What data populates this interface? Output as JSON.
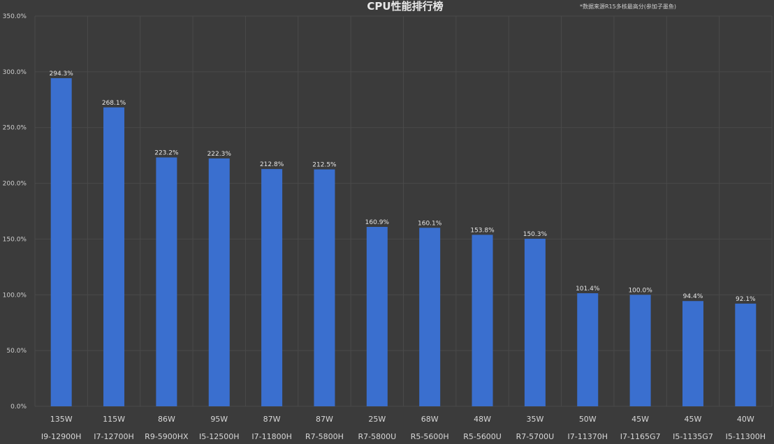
{
  "chart_data": {
    "type": "bar",
    "title": "CPU性能排行榜",
    "annotation": "*数据来源R15多核最高分(参加子墨鱼)",
    "categories": [
      "I9-12900H",
      "I7-12700H",
      "R9-5900HX",
      "I5-12500H",
      "I7-11800H",
      "R7-5800H",
      "R7-5800U",
      "R5-5600H",
      "R5-5600U",
      "R7-5700U",
      "I7-11370H",
      "I7-1165G7",
      "I5-1135G7",
      "I5-11300H"
    ],
    "power": [
      "135W",
      "115W",
      "86W",
      "95W",
      "87W",
      "87W",
      "25W",
      "68W",
      "48W",
      "35W",
      "50W",
      "45W",
      "45W",
      "40W"
    ],
    "values": [
      294.3,
      268.1,
      223.2,
      222.3,
      212.8,
      212.5,
      160.9,
      160.1,
      153.8,
      150.3,
      101.4,
      100.0,
      94.4,
      92.1
    ],
    "data_labels": [
      "294.3%",
      "268.1%",
      "223.2%",
      "222.3%",
      "212.8%",
      "212.5%",
      "160.9%",
      "160.1%",
      "153.8%",
      "150.3%",
      "101.4%",
      "100.0%",
      "94.4%",
      "92.1%"
    ],
    "ylim": [
      0,
      350
    ],
    "yticks": [
      0,
      50,
      100,
      150,
      200,
      250,
      300,
      350
    ],
    "ytick_labels": [
      "0.0%",
      "50.0%",
      "100.0%",
      "150.0%",
      "200.0%",
      "250.0%",
      "300.0%",
      "350.0%"
    ],
    "grid": true,
    "colors": {
      "bar": "#3a6fcf",
      "background": "#3b3b3b",
      "grid": "#4a4a4a"
    }
  }
}
